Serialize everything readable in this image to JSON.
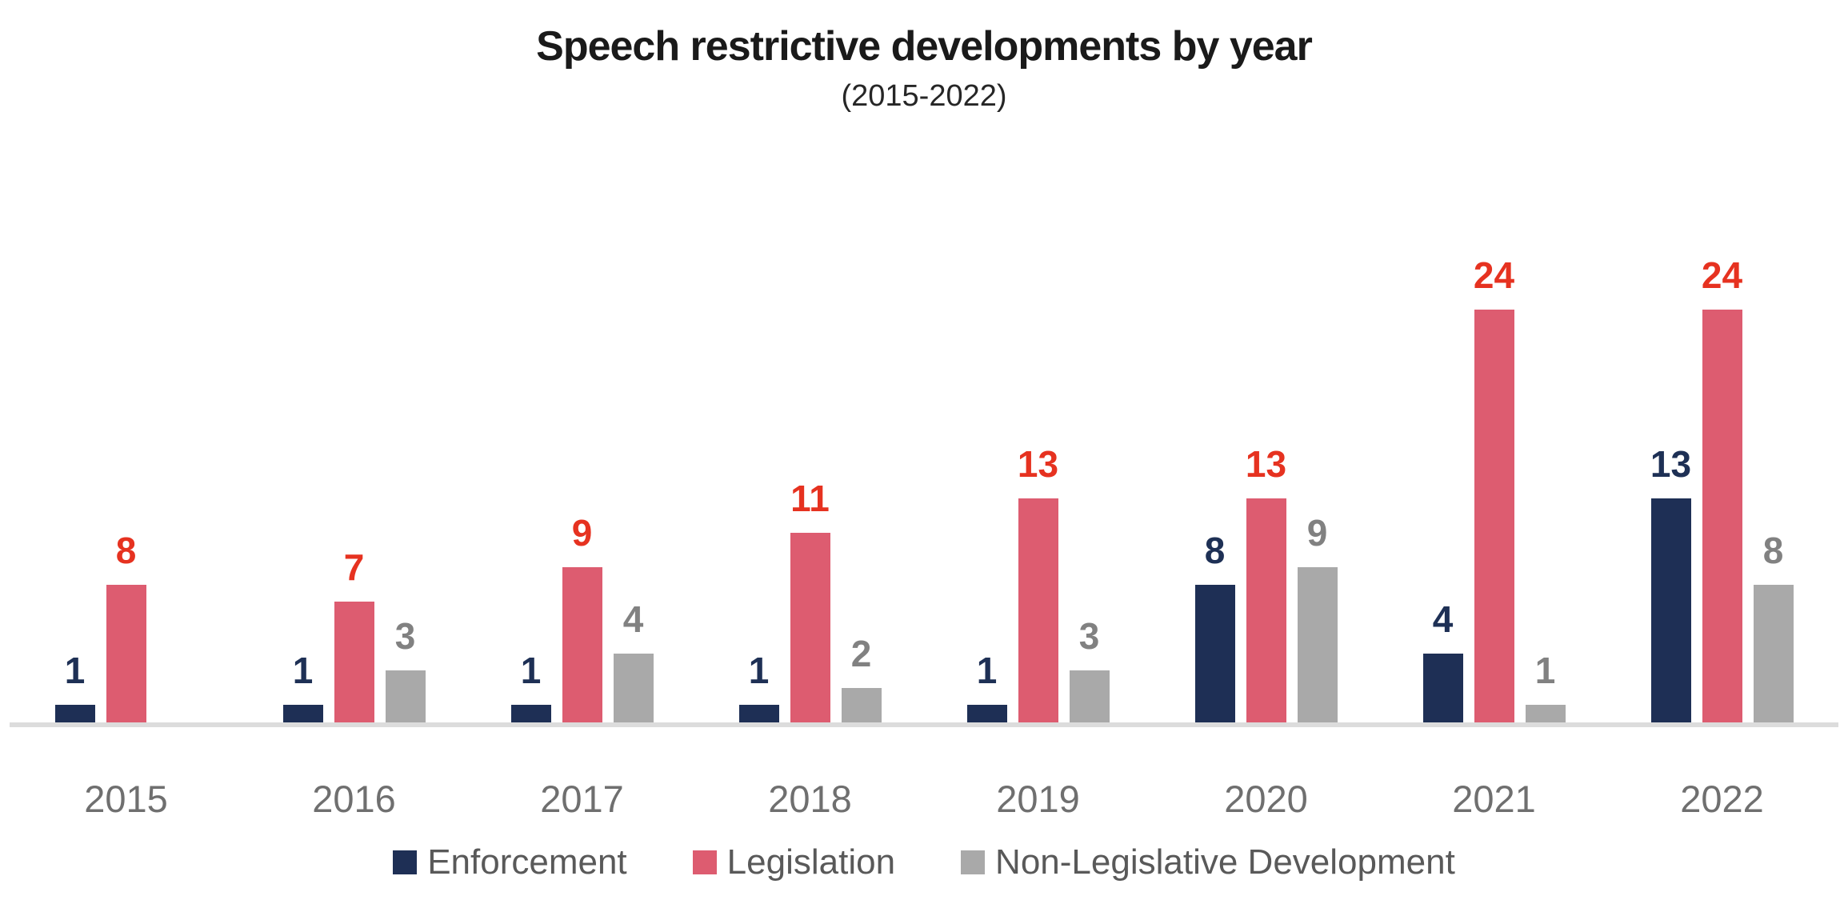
{
  "chart_data": {
    "type": "bar",
    "title": "Speech restrictive developments by year",
    "subtitle": "(2015-2022)",
    "categories": [
      "2015",
      "2016",
      "2017",
      "2018",
      "2019",
      "2020",
      "2021",
      "2022"
    ],
    "series": [
      {
        "name": "Enforcement",
        "color": "#1e2f55",
        "label_color": "#1e3055",
        "values": [
          1,
          1,
          1,
          1,
          1,
          8,
          4,
          13
        ]
      },
      {
        "name": "Legislation",
        "color": "#dd5c70",
        "label_color": "#e63220",
        "values": [
          8,
          7,
          9,
          11,
          13,
          13,
          24,
          24
        ]
      },
      {
        "name": "Non-Legislative Development",
        "color": "#a9a9a9",
        "label_color": "#818181",
        "values": [
          null,
          3,
          4,
          2,
          3,
          9,
          1,
          8
        ]
      }
    ],
    "ylim": [
      0,
      24
    ],
    "grid": false,
    "y_axis_shown": false,
    "data_labels_shown": true,
    "legend_position": "bottom",
    "axis_line_color": "#dcdcdc",
    "category_label_color": "#6f6f6f",
    "legend_text_color": "#595959",
    "title_color": "#1a1a1a",
    "background_color": "#ffffff"
  }
}
